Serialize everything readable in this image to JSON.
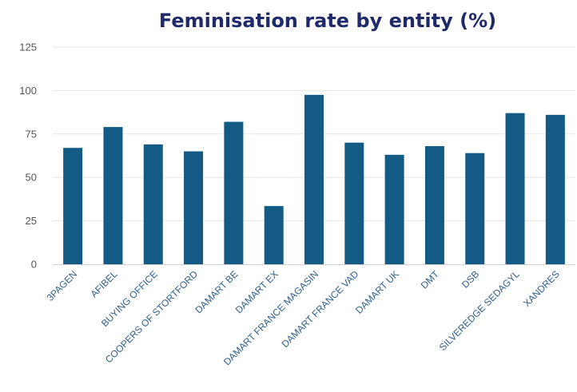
{
  "chart_data": {
    "type": "bar",
    "title": "Feminisation rate by entity (%)",
    "xlabel": "",
    "ylabel": "",
    "ylim": [
      0,
      125
    ],
    "yticks": [
      0,
      25,
      50,
      75,
      100,
      125
    ],
    "grid": true,
    "bar_color": "#135a85",
    "categories": [
      "3PAGEN",
      "AFIBEL",
      "BUYING OFFICE",
      "COOPERS OF STORTFORD",
      "DAMART BE",
      "DAMART EX",
      "DAMART FRANCE MAGASIN",
      "DAMART FRANCE VAD",
      "DAMART UK",
      "DMT",
      "DSB",
      "SILVEREDGE SEDAGYL",
      "XANDRES"
    ],
    "values": [
      67,
      79,
      69,
      65,
      82,
      33.5,
      97.5,
      70,
      63,
      68,
      64,
      87,
      86
    ]
  }
}
